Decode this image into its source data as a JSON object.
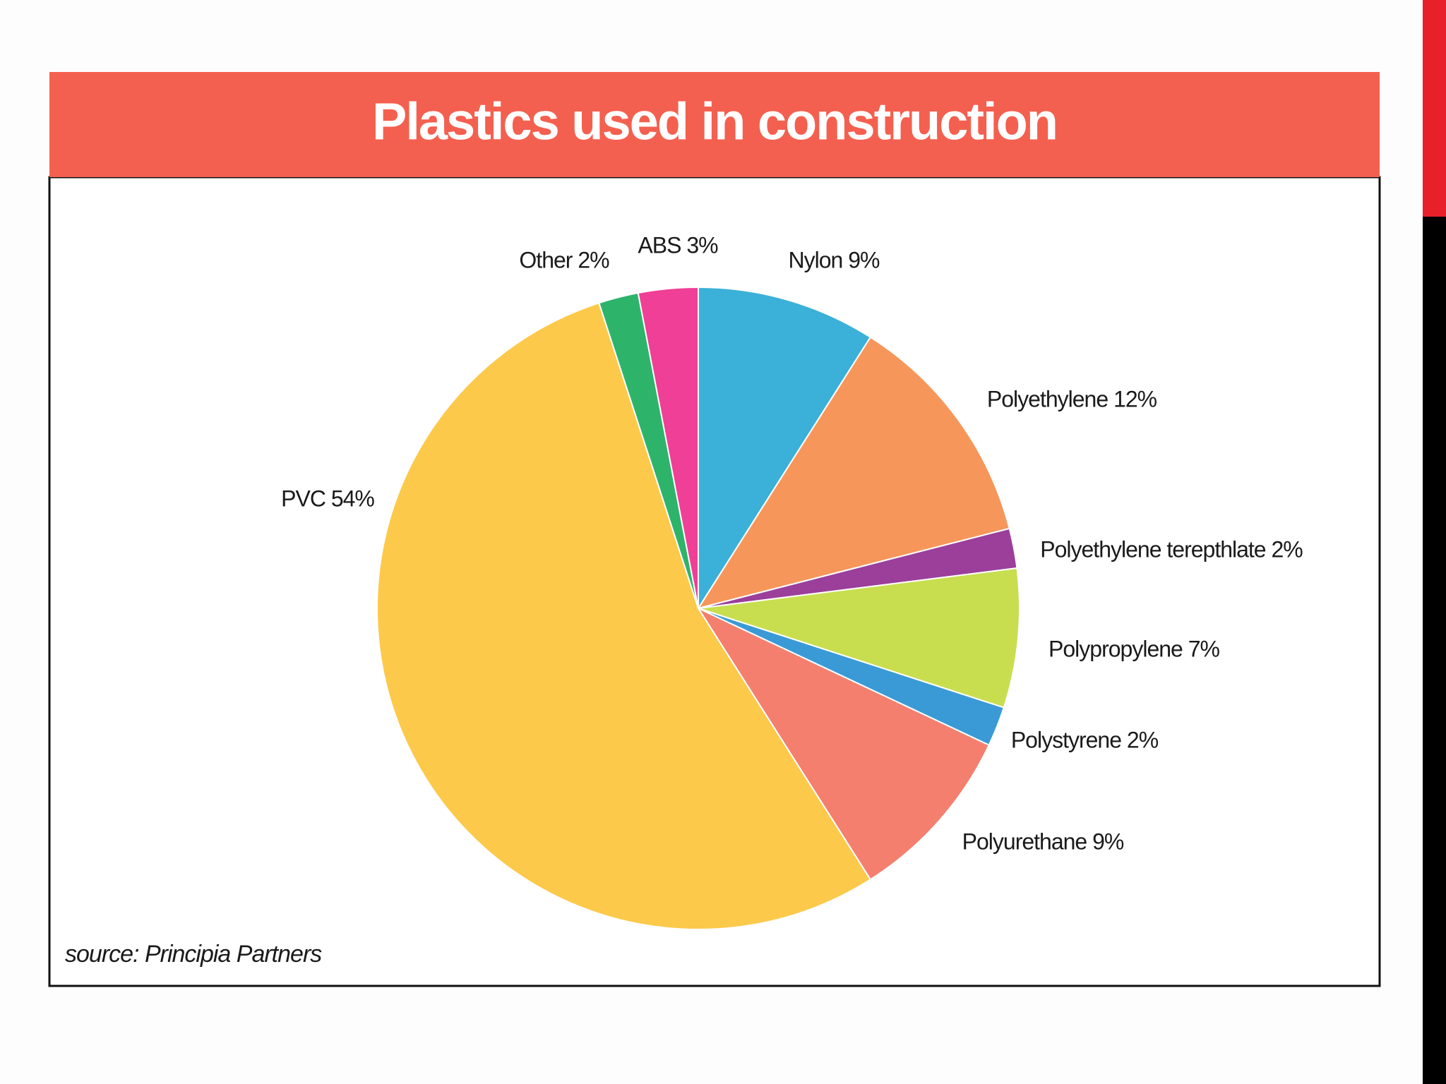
{
  "chart_data": {
    "type": "pie",
    "title": "Plastics used in construction",
    "source": "source: Principia Partners",
    "values": [
      9,
      12,
      2,
      7,
      2,
      9,
      54,
      2,
      3
    ],
    "value_labels": [
      "Nylon 9%",
      "Polyethylene 12%",
      "Polyethylene terepthlate 2%",
      "Polypropylene 7%",
      "Polystyrene 2%",
      "Polyurethane 9%",
      "PVC 54%",
      "Other 2%",
      "ABS 3%"
    ],
    "colors": [
      "#3bb0d8",
      "#f7965a",
      "#9b3f9a",
      "#c8de4f",
      "#3a9ad6",
      "#f47f6e",
      "#fcc94a",
      "#2eb36b",
      "#ef3f96"
    ]
  }
}
